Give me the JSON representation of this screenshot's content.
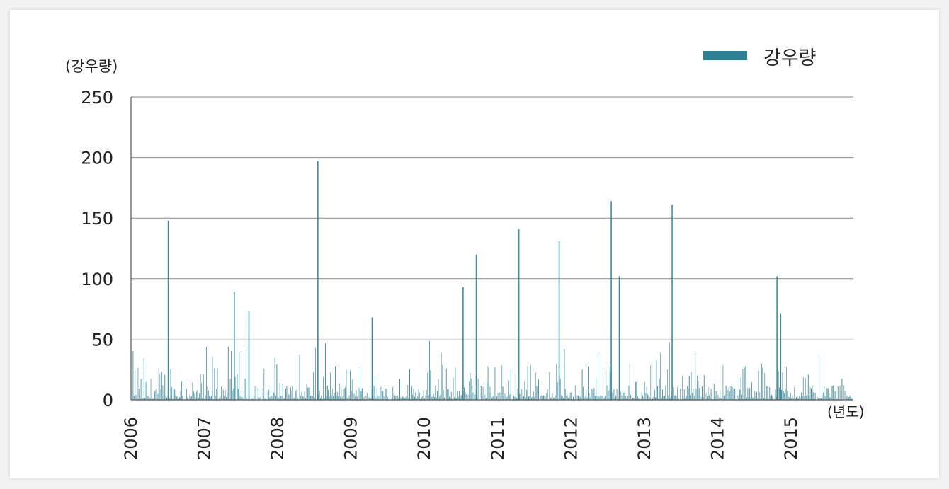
{
  "chart_data": {
    "type": "bar",
    "title": "",
    "ylabel": "(강우량)",
    "xlabel": "(년도)",
    "ylim": [
      0,
      250
    ],
    "yticks": [
      "250",
      "200",
      "150",
      "100",
      "50",
      "0"
    ],
    "x_categories": [
      "2006",
      "2007",
      "2008",
      "2009",
      "2010",
      "2011",
      "2012",
      "2013",
      "2014",
      "2015"
    ],
    "x_range_years": [
      2006.0,
      2015.83
    ],
    "grid": true,
    "legend_position": "top-right",
    "series": [
      {
        "name": "강우량",
        "color": "#2e7f93",
        "notable_peaks": [
          {
            "x": 2006.5,
            "y": 148
          },
          {
            "x": 2007.4,
            "y": 89
          },
          {
            "x": 2007.6,
            "y": 73
          },
          {
            "x": 2008.54,
            "y": 197
          },
          {
            "x": 2009.28,
            "y": 68
          },
          {
            "x": 2010.52,
            "y": 93
          },
          {
            "x": 2010.7,
            "y": 120
          },
          {
            "x": 2011.28,
            "y": 141
          },
          {
            "x": 2011.83,
            "y": 131
          },
          {
            "x": 2012.54,
            "y": 164
          },
          {
            "x": 2012.65,
            "y": 102
          },
          {
            "x": 2013.37,
            "y": 161
          },
          {
            "x": 2014.8,
            "y": 102
          },
          {
            "x": 2014.85,
            "y": 71
          }
        ]
      }
    ]
  }
}
